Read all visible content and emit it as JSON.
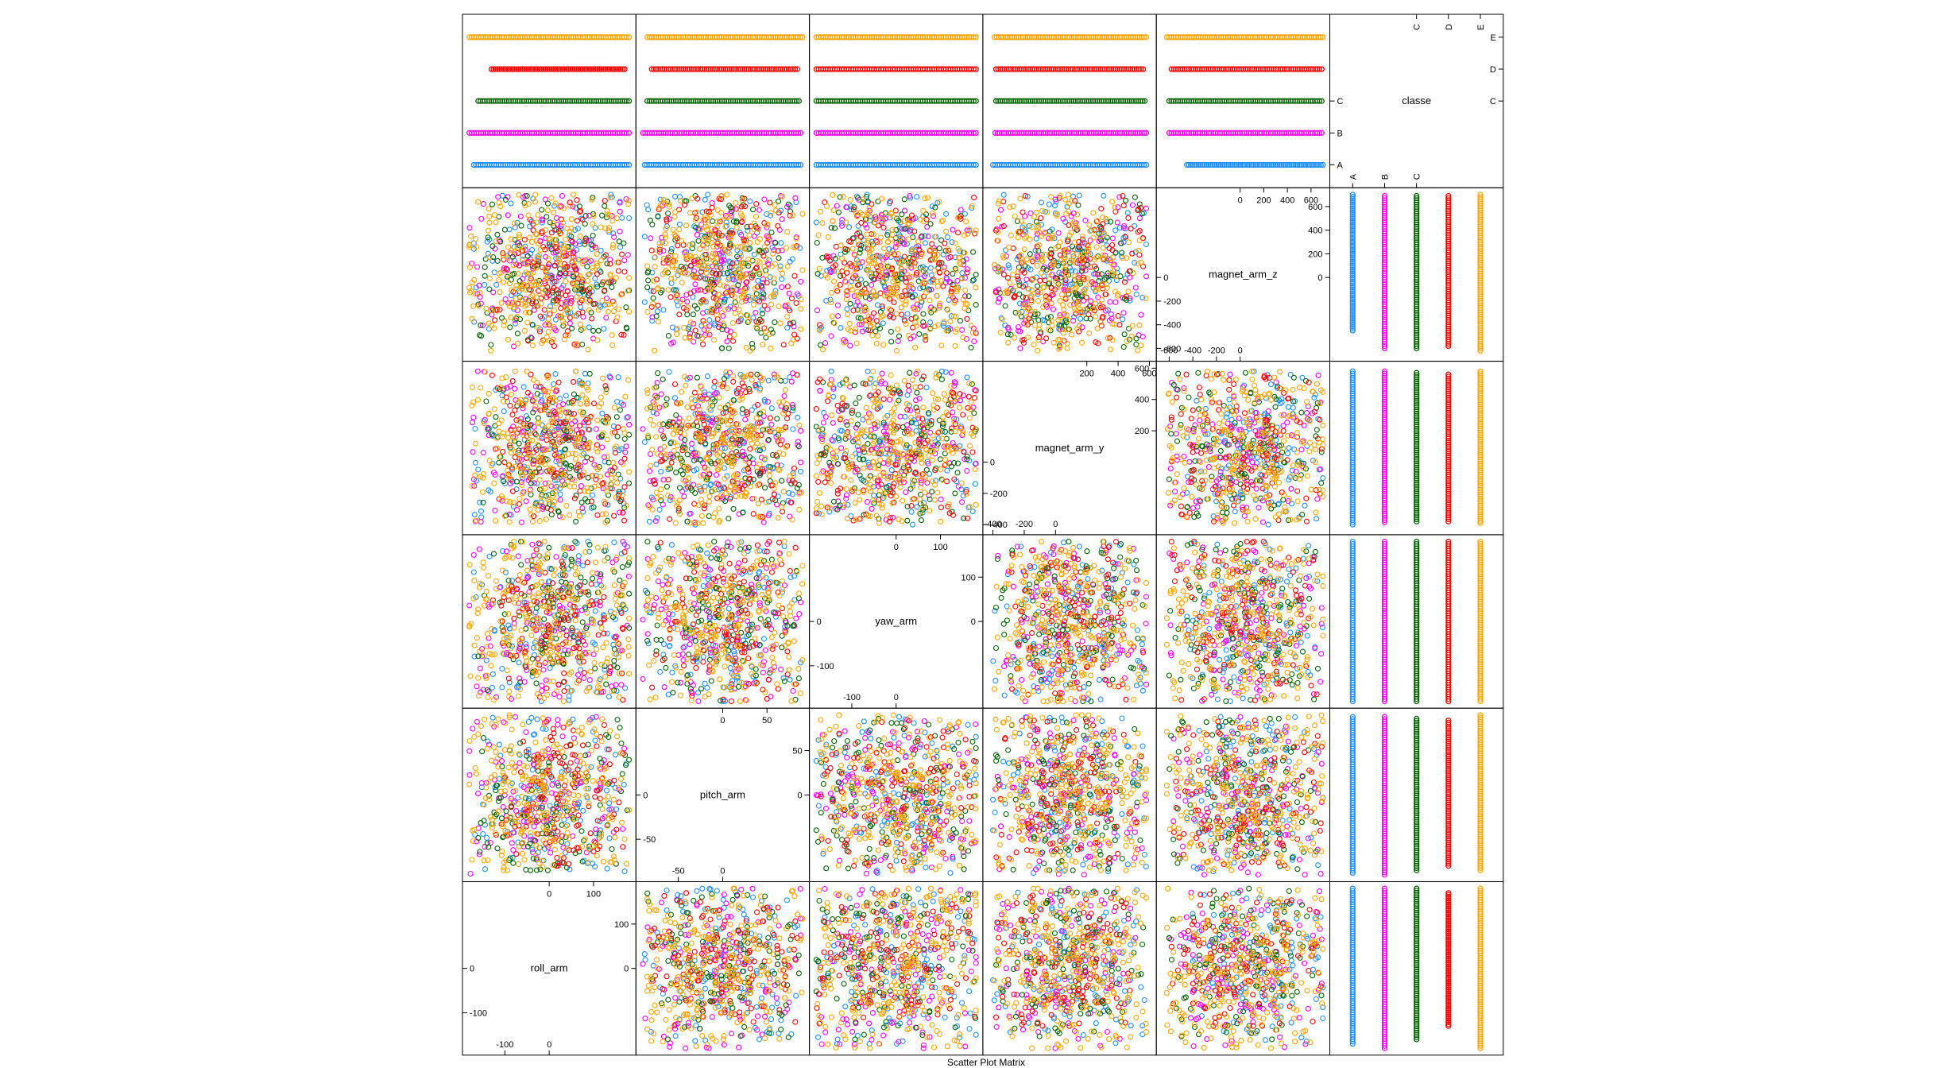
{
  "chart_data": {
    "type": "scatter",
    "title": "Scatter Plot Matrix",
    "grid": false,
    "legend": "none",
    "variables": [
      {
        "name": "roll_arm",
        "range": [
          -180,
          180
        ],
        "ticks": {
          "near": [
            0,
            100
          ],
          "far": [
            -100,
            0
          ]
        }
      },
      {
        "name": "pitch_arm",
        "range": [
          -90,
          90
        ],
        "ticks": {
          "near": [
            0,
            50
          ],
          "far": [
            -50,
            0
          ]
        }
      },
      {
        "name": "yaw_arm",
        "range": [
          -180,
          180
        ],
        "ticks": {
          "near": [
            0,
            100
          ],
          "far": [
            -100,
            0
          ]
        }
      },
      {
        "name": "magnet_arm_y",
        "range": [
          -420,
          600
        ],
        "ticks": {
          "near": [
            200,
            400,
            600
          ],
          "far": [
            -400,
            -200,
            0
          ]
        }
      },
      {
        "name": "magnet_arm_z",
        "range": [
          -650,
          700
        ],
        "ticks": {
          "near": [
            0,
            200,
            400,
            600
          ],
          "far": [
            -600,
            -400,
            -200,
            0
          ]
        }
      },
      {
        "name": "classe",
        "range": [
          0.5,
          5.5
        ],
        "categorical": true,
        "ticks": {
          "near": [
            "C",
            "D",
            "E"
          ],
          "far": [
            "A",
            "B",
            "C"
          ]
        }
      }
    ],
    "classes": [
      "A",
      "B",
      "C",
      "D",
      "E"
    ],
    "class_colors": {
      "A": "#1e90ff",
      "B": "#ff00ff",
      "C": "#006400",
      "D": "#ff0000",
      "E": "#ffa500"
    },
    "class_ranges": {
      "roll_arm": {
        "A": [
          -170,
          180
        ],
        "B": [
          -180,
          180
        ],
        "C": [
          -160,
          180
        ],
        "D": [
          -130,
          170
        ],
        "E": [
          -180,
          180
        ]
      },
      "pitch_arm": {
        "A": [
          -88,
          88
        ],
        "B": [
          -90,
          88
        ],
        "C": [
          -85,
          86
        ],
        "D": [
          -80,
          84
        ],
        "E": [
          -85,
          90
        ]
      },
      "yaw_arm": {
        "A": [
          -180,
          180
        ],
        "B": [
          -180,
          180
        ],
        "C": [
          -180,
          180
        ],
        "D": [
          -180,
          180
        ],
        "E": [
          -180,
          180
        ]
      },
      "magnet_arm_y": {
        "A": [
          -400,
          580
        ],
        "B": [
          -385,
          580
        ],
        "C": [
          -380,
          570
        ],
        "D": [
          -380,
          560
        ],
        "E": [
          -390,
          580
        ]
      },
      "magnet_arm_z": {
        "A": [
          -450,
          700
        ],
        "B": [
          -600,
          690
        ],
        "C": [
          -600,
          690
        ],
        "D": [
          -580,
          690
        ],
        "E": [
          -620,
          700
        ]
      }
    }
  }
}
